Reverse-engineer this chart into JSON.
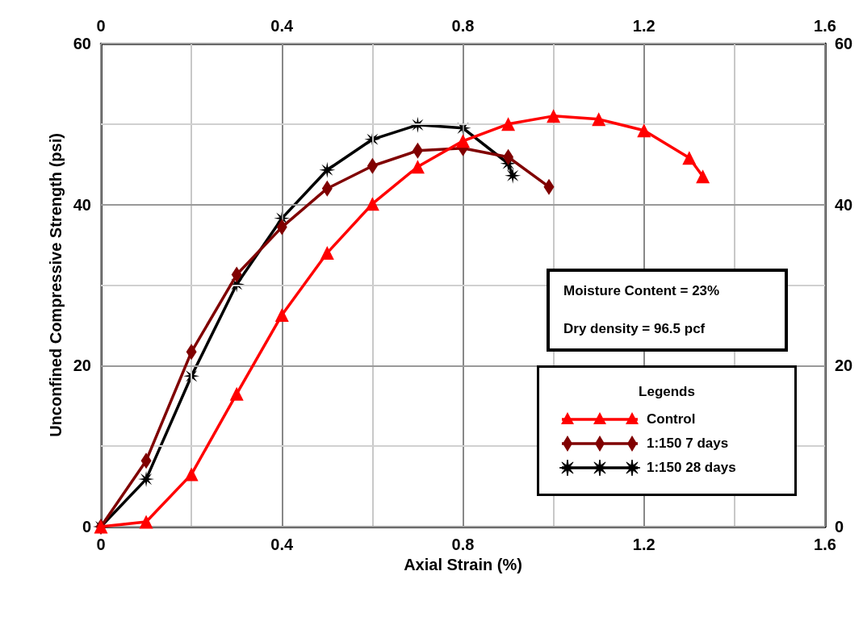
{
  "chart_data": {
    "type": "line",
    "xlabel": "Axial Strain (%)",
    "ylabel": "Unconfined Compressive Strength (psi)",
    "legend_title": "Legends",
    "legend": "bottom right",
    "grid": true,
    "line_style": "solid",
    "xlim": [
      0,
      1.6
    ],
    "xticks": [
      0,
      0.4,
      0.8,
      1.2,
      1.6
    ],
    "x2lim": [
      0,
      1.6
    ],
    "x2ticks": [
      0,
      0.4,
      0.8,
      1.2,
      1.6
    ],
    "ylim": [
      0,
      60
    ],
    "yticks": [
      0,
      20,
      40,
      60
    ],
    "y2lim": [
      0,
      60
    ],
    "y2ticks": [
      0,
      20,
      40,
      60
    ],
    "annotations": [
      "Moisture Content = 23%",
      "Dry density = 96.5 pcf"
    ],
    "series": [
      {
        "name": "Control",
        "color": "#ff0000",
        "marker": "triangle",
        "x": [
          0,
          0.1,
          0.2,
          0.3,
          0.4,
          0.5,
          0.6,
          0.7,
          0.8,
          0.9,
          1.0,
          1.1,
          1.2,
          1.3,
          1.33
        ],
        "values": [
          0,
          0.6,
          6.5,
          16.5,
          26.3,
          34.0,
          40.1,
          44.7,
          47.9,
          50.0,
          51.0,
          50.6,
          49.2,
          45.8,
          43.5
        ]
      },
      {
        "name": "1:150 7 days",
        "color": "#800000",
        "marker": "diamond",
        "x": [
          0,
          0.1,
          0.2,
          0.3,
          0.4,
          0.5,
          0.6,
          0.7,
          0.8,
          0.9,
          0.99
        ],
        "values": [
          0,
          8.2,
          21.7,
          31.3,
          37.2,
          42.0,
          44.8,
          46.7,
          47.0,
          45.9,
          42.2
        ]
      },
      {
        "name": "1:150 28 days",
        "color": "#000000",
        "marker": "star",
        "x": [
          0,
          0.1,
          0.2,
          0.3,
          0.4,
          0.5,
          0.6,
          0.7,
          0.8,
          0.9,
          0.91
        ],
        "values": [
          0,
          5.9,
          18.7,
          30.1,
          38.3,
          44.3,
          48.1,
          49.9,
          49.5,
          45.1,
          43.6
        ]
      }
    ]
  }
}
